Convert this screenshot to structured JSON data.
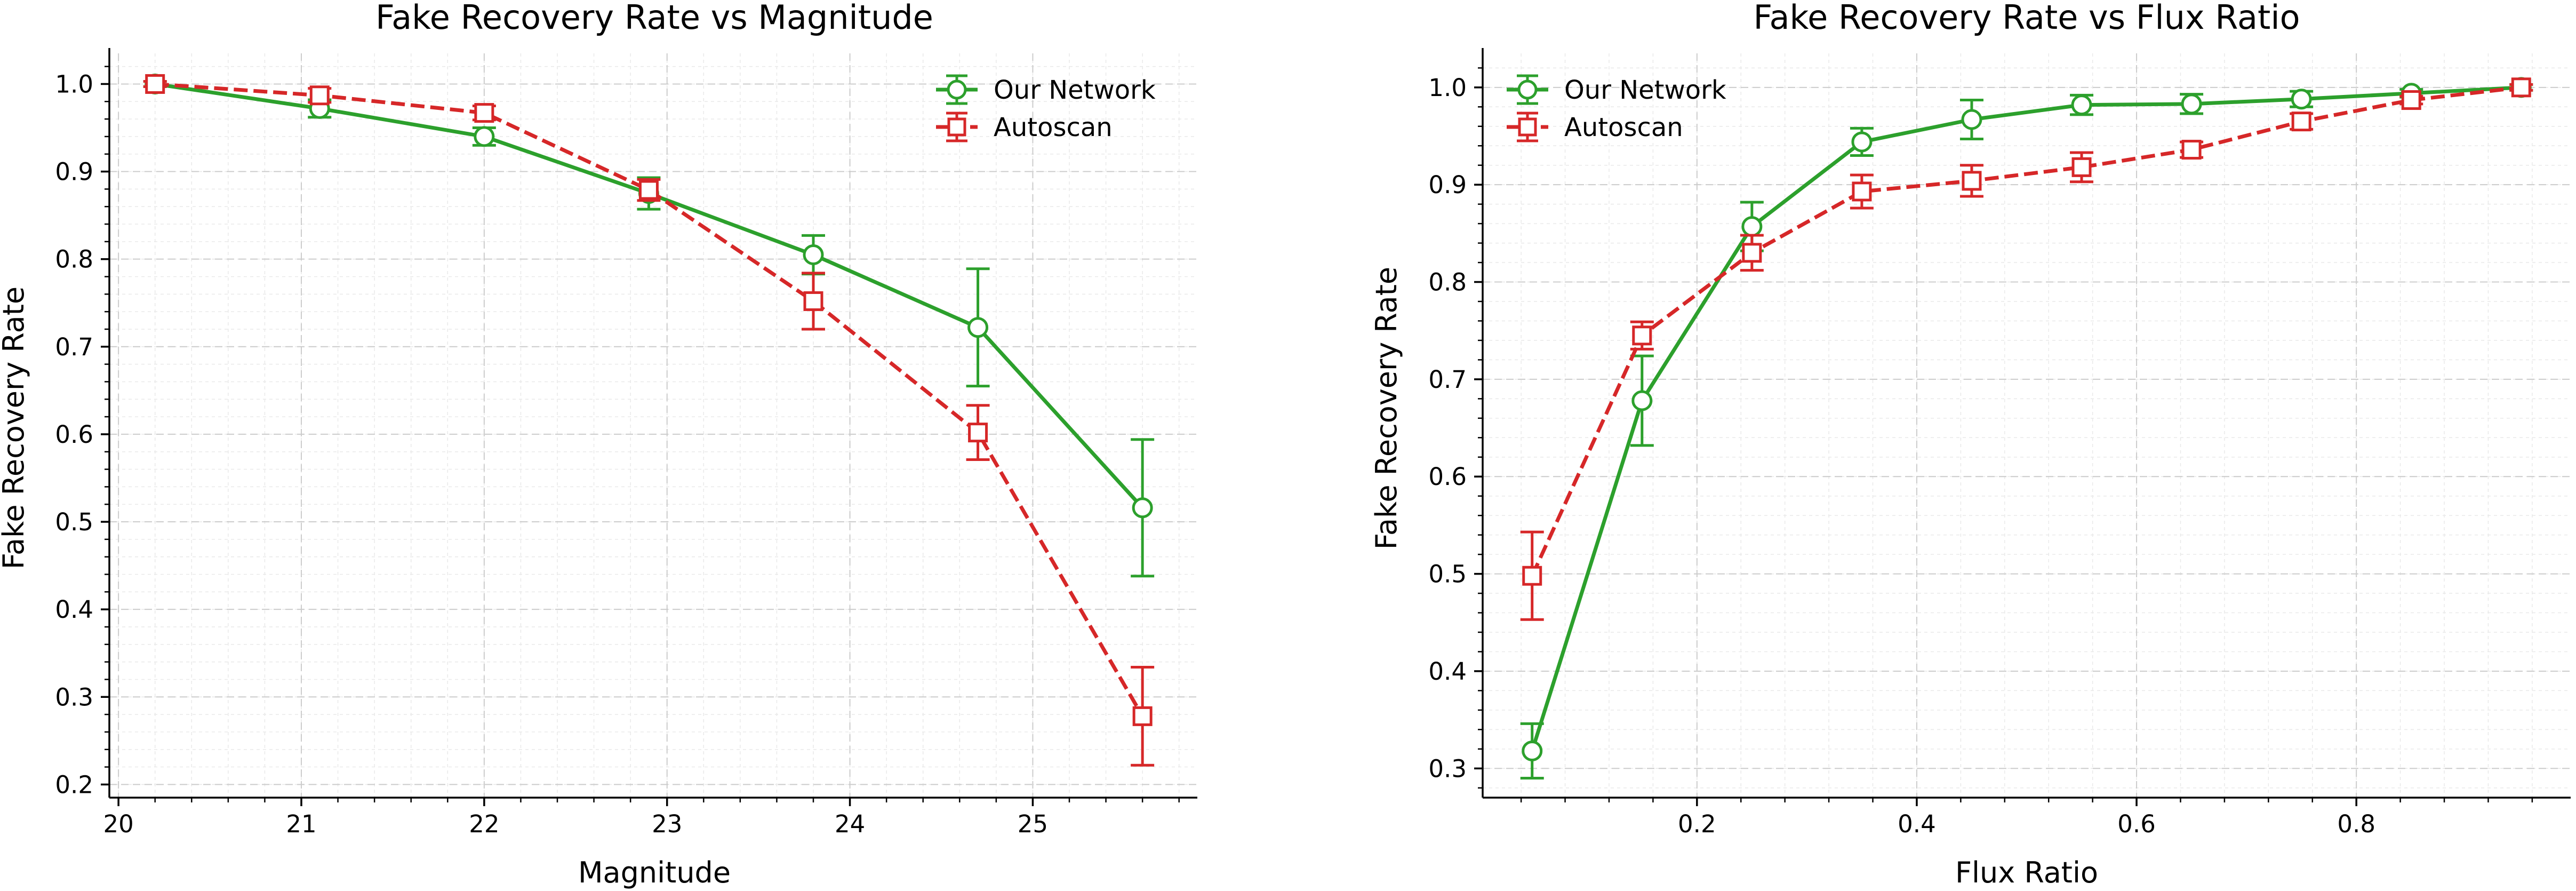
{
  "colors": {
    "our_network": "#2ca02c",
    "autoscan": "#d62728"
  },
  "chart_data": [
    {
      "type": "line",
      "title": "Fake Recovery Rate vs Magnitude",
      "xlabel": "Magnitude",
      "ylabel": "Fake Recovery Rate",
      "xlim": [
        19.95,
        25.9
      ],
      "ylim": [
        0.185,
        1.035
      ],
      "xticks": [
        20,
        21,
        22,
        23,
        24,
        25
      ],
      "xtick_labels": [
        "20",
        "21",
        "22",
        "23",
        "24",
        "25"
      ],
      "yticks": [
        0.2,
        0.3,
        0.4,
        0.5,
        0.6,
        0.7,
        0.8,
        0.9,
        1.0
      ],
      "ytick_labels": [
        "0.2",
        "0.3",
        "0.4",
        "0.5",
        "0.6",
        "0.7",
        "0.8",
        "0.9",
        "1.0"
      ],
      "legend_position": "top-right",
      "x": [
        20.2,
        21.1,
        22.0,
        22.9,
        23.8,
        24.7,
        25.6
      ],
      "series": [
        {
          "name": "Our Network",
          "color_key": "our_network",
          "marker": "circle",
          "linestyle": "solid",
          "values": [
            1.0,
            0.972,
            0.94,
            0.875,
            0.805,
            0.722,
            0.516
          ],
          "errors": [
            0.003,
            0.01,
            0.01,
            0.018,
            0.022,
            0.067,
            0.078
          ]
        },
        {
          "name": "Autoscan",
          "color_key": "autoscan",
          "marker": "square",
          "linestyle": "dashed",
          "values": [
            1.0,
            0.987,
            0.967,
            0.879,
            0.752,
            0.602,
            0.278
          ],
          "errors": [
            0.003,
            0.008,
            0.008,
            0.012,
            0.032,
            0.031,
            0.056
          ]
        }
      ]
    },
    {
      "type": "line",
      "title": "Fake Recovery Rate vs Flux Ratio",
      "xlabel": "Flux Ratio",
      "ylabel": "Fake Recovery Rate",
      "xlim": [
        0.005,
        0.995
      ],
      "ylim": [
        0.27,
        1.035
      ],
      "xticks": [
        0.2,
        0.4,
        0.6,
        0.8
      ],
      "xtick_labels": [
        "0.2",
        "0.4",
        "0.6",
        "0.8"
      ],
      "yticks": [
        0.3,
        0.4,
        0.5,
        0.6,
        0.7,
        0.8,
        0.9,
        1.0
      ],
      "ytick_labels": [
        "0.3",
        "0.4",
        "0.5",
        "0.6",
        "0.7",
        "0.8",
        "0.9",
        "1.0"
      ],
      "legend_position": "top-left",
      "x": [
        0.05,
        0.15,
        0.25,
        0.35,
        0.45,
        0.55,
        0.65,
        0.75,
        0.85,
        0.95
      ],
      "series": [
        {
          "name": "Our Network",
          "color_key": "our_network",
          "marker": "circle",
          "linestyle": "solid",
          "values": [
            0.318,
            0.678,
            0.857,
            0.944,
            0.967,
            0.982,
            0.983,
            0.988,
            0.994,
            1.0
          ],
          "errors": [
            0.028,
            0.046,
            0.025,
            0.014,
            0.02,
            0.01,
            0.01,
            0.008,
            0.004,
            0.003
          ]
        },
        {
          "name": "Autoscan",
          "color_key": "autoscan",
          "marker": "square",
          "linestyle": "dashed",
          "values": [
            0.498,
            0.745,
            0.83,
            0.893,
            0.904,
            0.918,
            0.936,
            0.965,
            0.987,
            1.0
          ],
          "errors": [
            0.045,
            0.014,
            0.018,
            0.017,
            0.016,
            0.015,
            0.008,
            0.008,
            0.004,
            0.003
          ]
        }
      ]
    }
  ]
}
